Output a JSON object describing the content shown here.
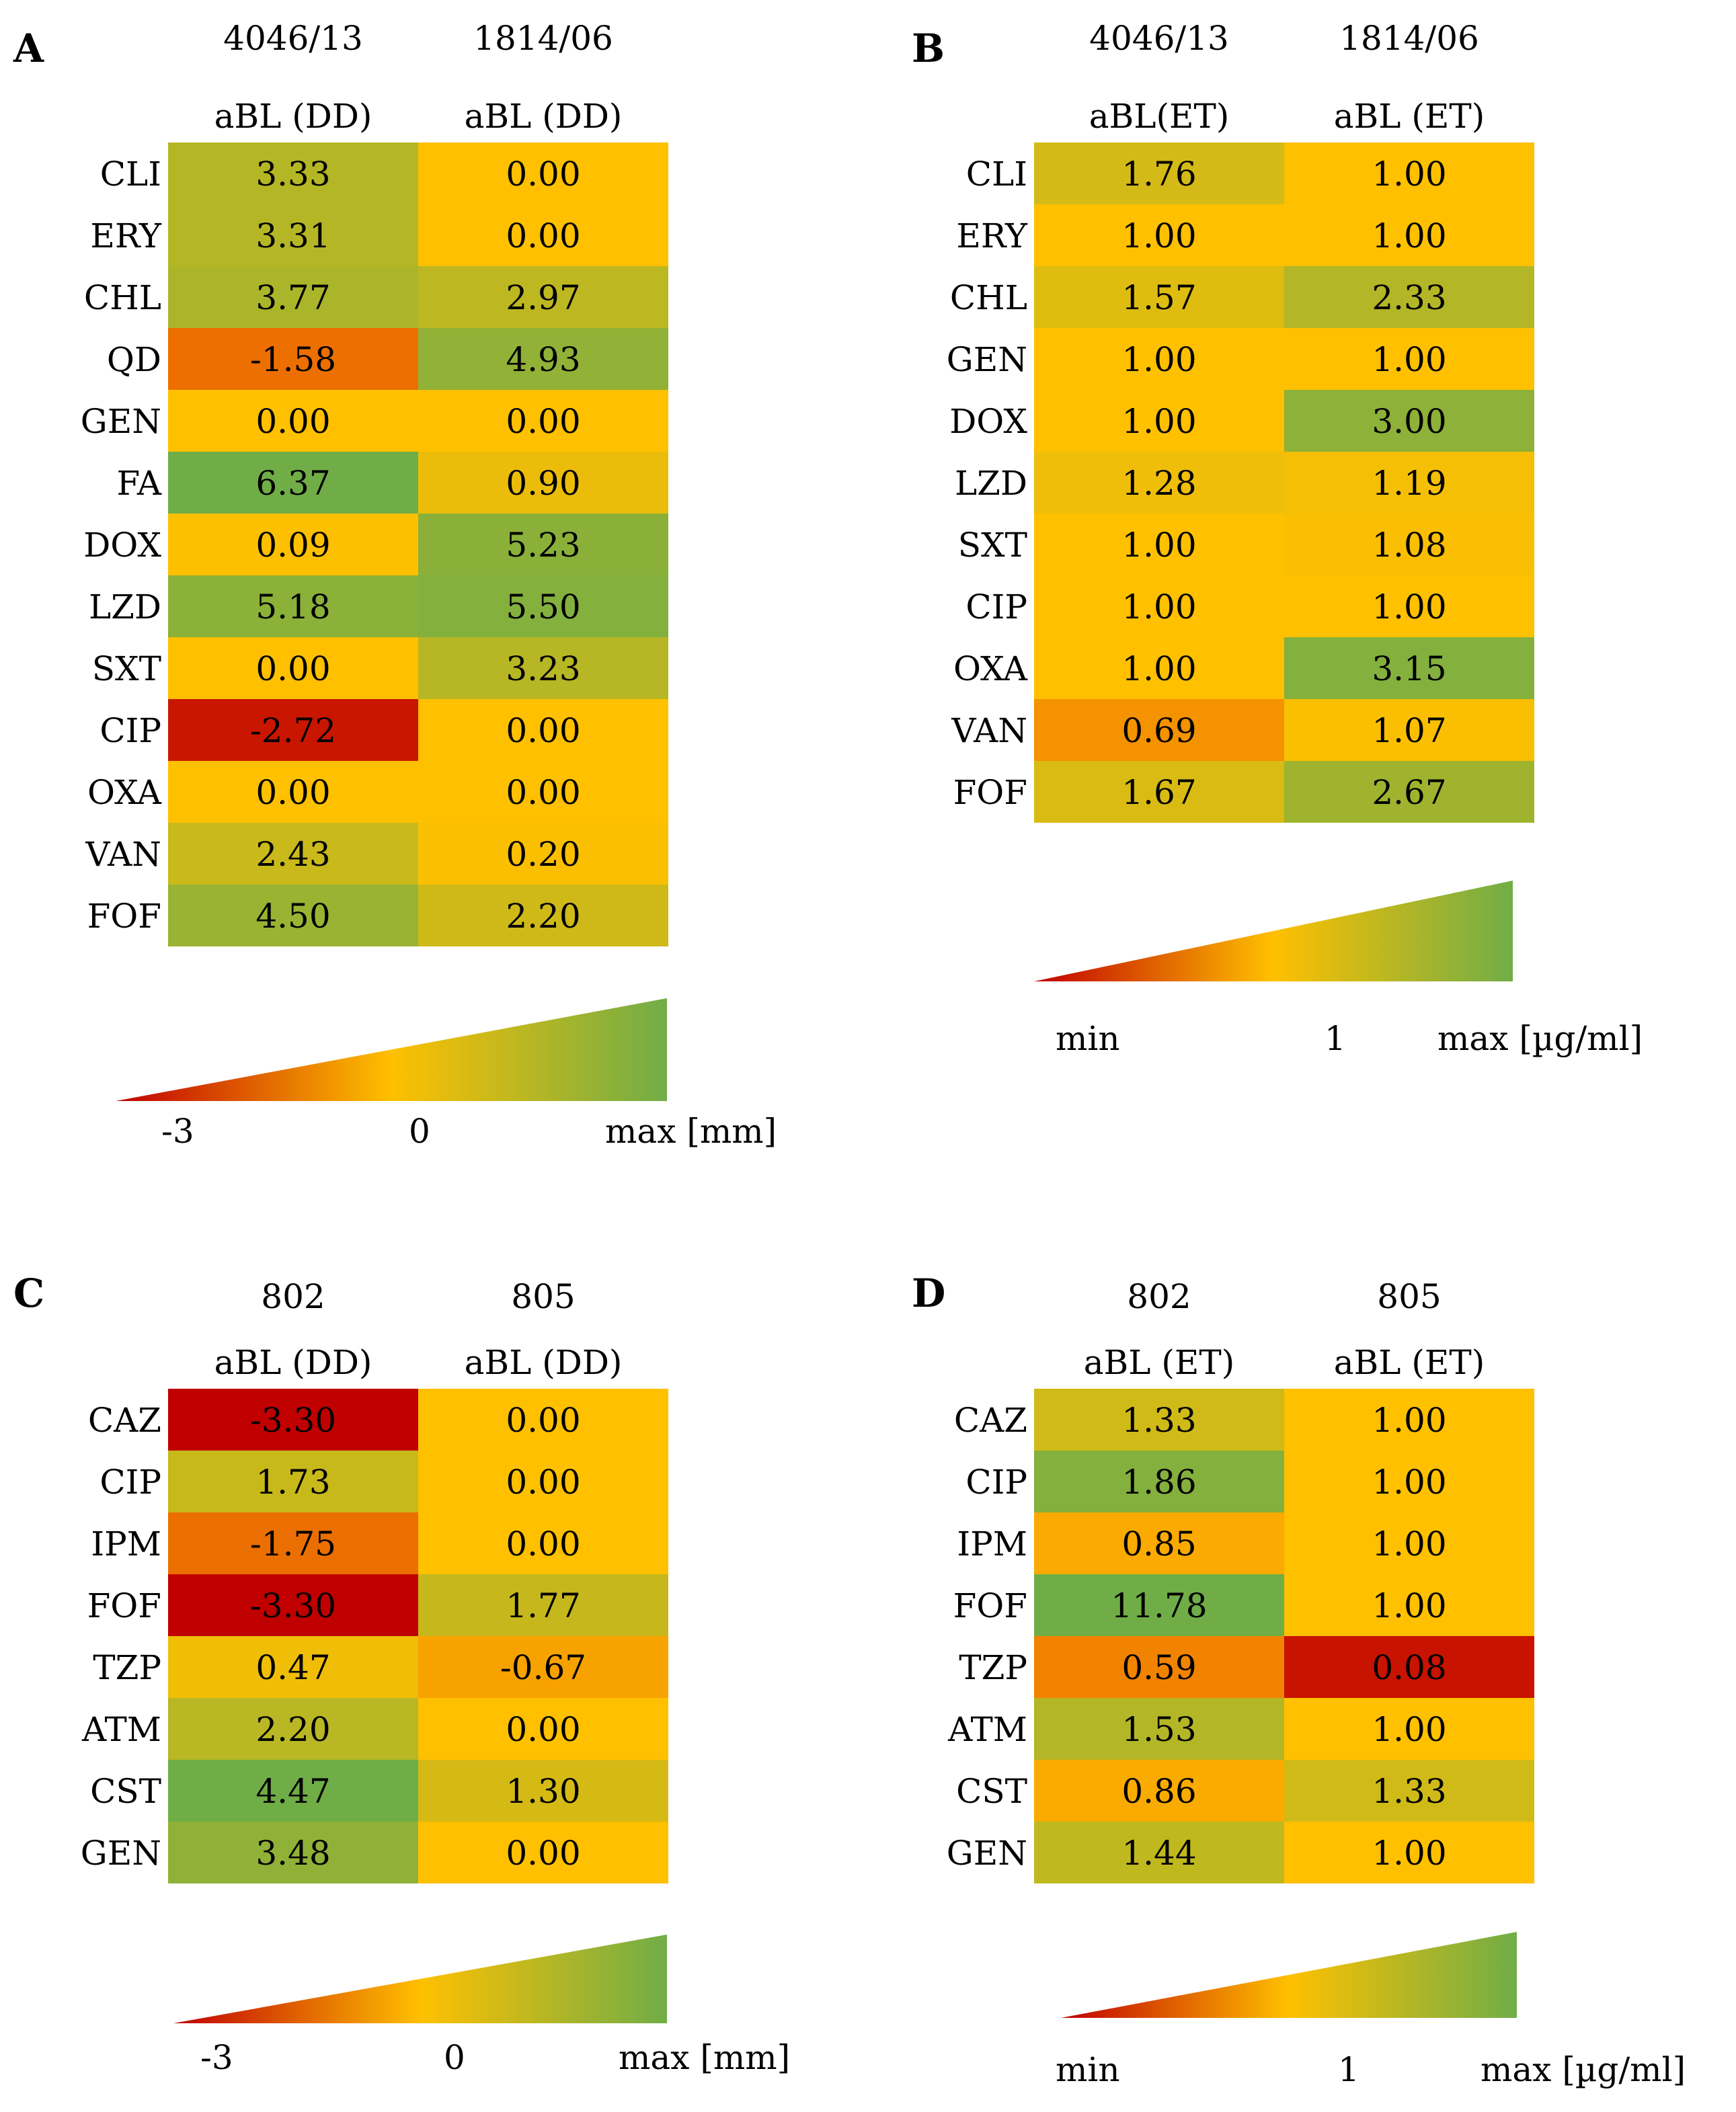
{
  "colors": {
    "red": "#c00000",
    "orange": "#ee7500",
    "yellow": "#ffc000",
    "green": "#70ad47"
  },
  "chart_data": [
    {
      "type": "heatmap",
      "panel": "A",
      "columns": [
        {
          "title": "4046/13",
          "subtitle": "aBL (DD)"
        },
        {
          "title": "1814/06",
          "subtitle": "aBL (DD)"
        }
      ],
      "rows": [
        "CLI",
        "ERY",
        "CHL",
        "QD",
        "GEN",
        "FA",
        "DOX",
        "LZD",
        "SXT",
        "CIP",
        "OXA",
        "VAN",
        "FOF"
      ],
      "values": [
        [
          "3.33",
          "0.00"
        ],
        [
          "3.31",
          "0.00"
        ],
        [
          "3.77",
          "2.97"
        ],
        [
          "-1.58",
          "4.93"
        ],
        [
          "0.00",
          "0.00"
        ],
        [
          "6.37",
          "0.90"
        ],
        [
          "0.09",
          "5.23"
        ],
        [
          "5.18",
          "5.50"
        ],
        [
          "0.00",
          "3.23"
        ],
        [
          "-2.72",
          "0.00"
        ],
        [
          "0.00",
          "0.00"
        ],
        [
          "2.43",
          "0.20"
        ],
        [
          "4.50",
          "2.20"
        ]
      ],
      "scale": {
        "min": -3,
        "mid": 0,
        "max": 6.4
      },
      "legend": {
        "min_label": "-3",
        "mid_label": "0",
        "max_label": "max [mm]"
      }
    },
    {
      "type": "heatmap",
      "panel": "B",
      "columns": [
        {
          "title": "4046/13",
          "subtitle": "aBL(ET)"
        },
        {
          "title": "1814/06",
          "subtitle": "aBL (ET)"
        }
      ],
      "rows": [
        "CLI",
        "ERY",
        "CHL",
        "GEN",
        "DOX",
        "LZD",
        "SXT",
        "CIP",
        "OXA",
        "VAN",
        "FOF"
      ],
      "values": [
        [
          "1.76",
          "1.00"
        ],
        [
          "1.00",
          "1.00"
        ],
        [
          "1.57",
          "2.33"
        ],
        [
          "1.00",
          "1.00"
        ],
        [
          "1.00",
          "3.00"
        ],
        [
          "1.28",
          "1.19"
        ],
        [
          "1.00",
          "1.08"
        ],
        [
          "1.00",
          "1.00"
        ],
        [
          "1.00",
          "3.15"
        ],
        [
          "0.69",
          "1.07"
        ],
        [
          "1.67",
          "2.67"
        ]
      ],
      "scale": {
        "min": 0,
        "mid": 1,
        "max": 3.5
      },
      "legend": {
        "min_label": "min",
        "mid_label": "1",
        "max_label": "max [µg/ml]"
      }
    },
    {
      "type": "heatmap",
      "panel": "C",
      "columns": [
        {
          "title": "802",
          "subtitle": "aBL (DD)"
        },
        {
          "title": "805",
          "subtitle": "aBL (DD)"
        }
      ],
      "rows": [
        "CAZ",
        "CIP",
        "IPM",
        "FOF",
        "TZP",
        "ATM",
        "CST",
        "GEN"
      ],
      "values": [
        [
          "-3.30",
          "0.00"
        ],
        [
          "1.73",
          "0.00"
        ],
        [
          "-1.75",
          "0.00"
        ],
        [
          "-3.30",
          "1.77"
        ],
        [
          "0.47",
          "-0.67"
        ],
        [
          "2.20",
          "0.00"
        ],
        [
          "4.47",
          "1.30"
        ],
        [
          "3.48",
          "0.00"
        ]
      ],
      "scale": {
        "min": -3.3,
        "mid": 0,
        "max": 4.47
      },
      "legend": {
        "min_label": "-3",
        "mid_label": "0",
        "max_label": "max [mm]"
      }
    },
    {
      "type": "heatmap",
      "panel": "D",
      "columns": [
        {
          "title": "802",
          "subtitle": "aBL (ET)"
        },
        {
          "title": "805",
          "subtitle": "aBL (ET)"
        }
      ],
      "rows": [
        "CAZ",
        "CIP",
        "IPM",
        "FOF",
        "TZP",
        "ATM",
        "CST",
        "GEN"
      ],
      "values": [
        [
          "1.33",
          "1.00"
        ],
        [
          "1.86",
          "1.00"
        ],
        [
          "0.85",
          "1.00"
        ],
        [
          "11.78",
          "1.00"
        ],
        [
          "0.59",
          "0.08"
        ],
        [
          "1.53",
          "1.00"
        ],
        [
          "0.86",
          "1.33"
        ],
        [
          "1.44",
          "1.00"
        ]
      ],
      "scale": {
        "min": 0,
        "mid": 1,
        "max": 2
      },
      "legend": {
        "min_label": "min",
        "mid_label": "1",
        "max_label": "max [µg/ml]"
      }
    }
  ]
}
